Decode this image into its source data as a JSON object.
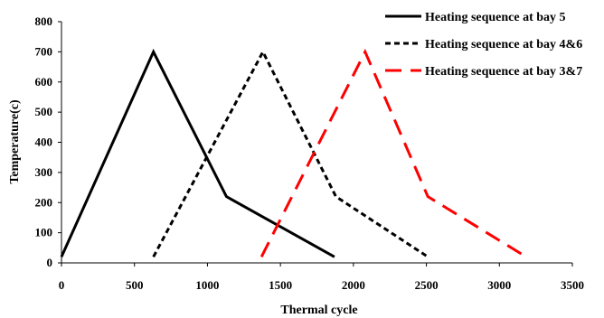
{
  "chart_data": {
    "type": "line",
    "title": "",
    "xlabel": "Thermal cycle",
    "ylabel": "Temperature(c)",
    "xlim": [
      0,
      3500
    ],
    "ylim": [
      0,
      800
    ],
    "xticks": [
      0,
      500,
      1000,
      1500,
      2000,
      2500,
      3000,
      3500
    ],
    "yticks": [
      0,
      100,
      200,
      300,
      400,
      500,
      600,
      700,
      800
    ],
    "grid": false,
    "legend_position": "top-right",
    "series": [
      {
        "name": "Heating sequence at bay 5",
        "color": "#000000",
        "dash": "solid",
        "points": [
          [
            0,
            20
          ],
          [
            630,
            700
          ],
          [
            1130,
            220
          ],
          [
            1870,
            20
          ]
        ]
      },
      {
        "name": "Heating sequence at bay 4&6",
        "color": "#000000",
        "dash": "dashed",
        "points": [
          [
            630,
            20
          ],
          [
            1380,
            700
          ],
          [
            1880,
            220
          ],
          [
            2510,
            20
          ]
        ]
      },
      {
        "name": "Heating sequence at bay 3&7",
        "color": "#ff0000",
        "dash": "long-dashed",
        "points": [
          [
            1370,
            20
          ],
          [
            2080,
            700
          ],
          [
            2510,
            220
          ],
          [
            3150,
            30
          ]
        ]
      }
    ]
  }
}
